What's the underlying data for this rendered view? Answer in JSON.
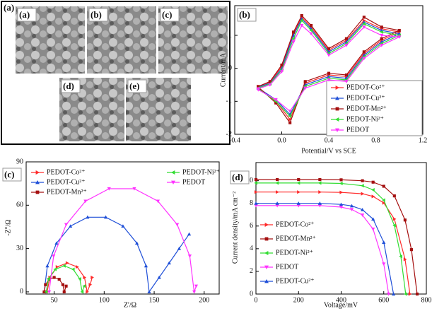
{
  "panel_a": {
    "label": "(a)",
    "images": [
      "(a)",
      "(b)",
      "(c)",
      "(d)",
      "(e)"
    ]
  },
  "chart_data": [
    {
      "type": "line",
      "label": "(b)",
      "x_label": "Potential/V vs SCE",
      "y_label": "Current/mA",
      "xlim": [
        -0.4,
        1.2
      ],
      "ylim": [
        -2,
        1.9
      ],
      "xticks": [
        -0.4,
        {
          "value": 0,
          "label": "0.0"
        },
        0.4,
        0.8,
        1.2
      ],
      "yticks": [
        -2,
        -1,
        0,
        1
      ],
      "x": [
        -0.2,
        -0.1,
        0,
        0.1,
        0.17,
        0.25,
        0.4,
        0.55,
        0.7,
        0.85,
        1.0,
        0.85,
        0.7,
        0.55,
        0.4,
        0.2,
        0.07,
        -0.05,
        -0.2
      ],
      "series": [
        {
          "name": "PEDOT-Co²⁺",
          "color": "#ff2a2a",
          "marker": "triangle-right",
          "values": [
            -0.55,
            -0.42,
            0.05,
            1.05,
            1.55,
            1.25,
            0.55,
            0.85,
            1.45,
            1.2,
            1.1,
            0.85,
            0.45,
            -0.25,
            -0.2,
            -0.45,
            -1.55,
            -1.0,
            -0.58
          ]
        },
        {
          "name": "PEDOT-Cu²⁺",
          "color": "#1f4fd8",
          "marker": "triangle-up",
          "values": [
            -0.57,
            -0.45,
            0.0,
            1.0,
            1.5,
            1.2,
            0.5,
            0.8,
            1.4,
            1.15,
            1.05,
            0.8,
            0.4,
            -0.3,
            -0.25,
            -0.5,
            -1.4,
            -0.95,
            -0.6
          ]
        },
        {
          "name": "PEDOT-Mn²⁺",
          "color": "#a51010",
          "marker": "square",
          "values": [
            -0.55,
            -0.4,
            0.1,
            1.1,
            1.6,
            1.3,
            0.6,
            0.9,
            1.55,
            1.25,
            1.15,
            0.9,
            0.5,
            -0.2,
            -0.15,
            -0.4,
            -1.65,
            -1.05,
            -0.57
          ]
        },
        {
          "name": "PEDOT-Ni²⁺",
          "color": "#33dd33",
          "marker": "triangle-left",
          "values": [
            -0.6,
            -0.47,
            -0.05,
            0.9,
            1.45,
            1.15,
            0.45,
            0.75,
            1.35,
            1.1,
            1.0,
            0.75,
            0.35,
            -0.35,
            -0.3,
            -0.55,
            -1.45,
            -1.0,
            -0.62
          ]
        },
        {
          "name": "PEDOT",
          "color": "#ff33ff",
          "marker": "triangle-down",
          "values": [
            -0.62,
            -0.5,
            -0.1,
            0.8,
            1.3,
            1.05,
            0.4,
            0.7,
            1.25,
            1.0,
            0.95,
            0.7,
            0.3,
            -0.4,
            -0.35,
            -0.6,
            -1.3,
            -0.95,
            -0.65
          ]
        }
      ]
    },
    {
      "type": "line",
      "label": "(c)",
      "x_label": "Z'/Ω",
      "y_label": "-Z''/Ω",
      "xlim": [
        22,
        215
      ],
      "ylim": [
        -1.5,
        90
      ],
      "xticks": [
        50,
        100,
        150,
        200
      ],
      "yticks": [
        0,
        30,
        60,
        90
      ],
      "series": [
        {
          "name": "PEDOT-Co²⁺",
          "color": "#ff2a2a",
          "marker": "triangle-right",
          "x": [
            43,
            45.7,
            53,
            63,
            73,
            80.3,
            83,
            86,
            88
          ],
          "values": [
            0,
            10,
            17.3,
            20,
            17.3,
            10,
            0,
            5,
            10
          ]
        },
        {
          "name": "PEDOT-Cu²⁺",
          "color": "#1f4fd8",
          "marker": "triangle-up",
          "x": [
            40,
            43.2,
            52.3,
            66.3,
            83.4,
            101.6,
            118.8,
            132.7,
            141.8,
            145,
            155,
            165,
            175,
            185
          ],
          "values": [
            0,
            18,
            33.7,
            45.5,
            51.7,
            51.7,
            45.5,
            33.7,
            18,
            0,
            10,
            20,
            30,
            40
          ]
        },
        {
          "name": "PEDOT-Mn²⁺",
          "color": "#a51010",
          "marker": "square",
          "x": [
            40,
            41.3,
            45,
            50,
            55,
            58.7,
            60,
            62
          ],
          "values": [
            0,
            5,
            8.7,
            10,
            8.7,
            5,
            0,
            4
          ]
        },
        {
          "name": "PEDOT-Ni²⁺",
          "color": "#33dd33",
          "marker": "triangle-left",
          "x": [
            42,
            44.4,
            51,
            60,
            69,
            75.6,
            78,
            80
          ],
          "values": [
            0,
            9,
            15.6,
            18,
            15.6,
            9,
            0,
            4
          ]
        },
        {
          "name": "PEDOT",
          "color": "#ff33ff",
          "marker": "triangle-down",
          "x": [
            45,
            49.4,
            62,
            81.3,
            104.9,
            130.1,
            153.8,
            173,
            185.6,
            190,
            192
          ],
          "values": [
            0,
            24.8,
            46.6,
            62.8,
            71.4,
            71.4,
            62.8,
            46.6,
            24.8,
            0,
            4
          ]
        }
      ]
    },
    {
      "type": "line",
      "label": "(d)",
      "x_label": "Voltage/mV",
      "y_label": "Current density/mA cm⁻²",
      "xlim": [
        0,
        800
      ],
      "ylim": [
        0,
        11.6
      ],
      "xticks": [
        0,
        200,
        400,
        600,
        800
      ],
      "yticks": [
        0,
        2,
        4,
        6,
        8,
        10
      ],
      "series": [
        {
          "name": "PEDOT-Co²⁺",
          "color": "#ff2a2a",
          "marker": "triangle-right",
          "x": [
            0,
            100,
            200,
            300,
            400,
            500,
            550,
            600,
            650,
            700,
            723
          ],
          "values": [
            9.0,
            9.0,
            9.0,
            9.0,
            8.97,
            8.85,
            8.61,
            8.04,
            6.62,
            3.06,
            0
          ]
        },
        {
          "name": "PEDOT-Mn²⁺",
          "color": "#a51010",
          "marker": "square",
          "x": [
            0,
            100,
            200,
            300,
            400,
            500,
            550,
            600,
            650,
            700,
            730,
            757
          ],
          "values": [
            10.1,
            10.1,
            10.1,
            10.1,
            10.08,
            10.0,
            9.87,
            9.51,
            8.66,
            6.53,
            3.92,
            0
          ]
        },
        {
          "name": "PEDOT-Ni²⁺",
          "color": "#33dd33",
          "marker": "triangle-left",
          "x": [
            0,
            100,
            200,
            300,
            400,
            500,
            550,
            600,
            650,
            680,
            703
          ],
          "values": [
            9.8,
            9.8,
            9.8,
            9.8,
            9.76,
            9.56,
            9.19,
            8.29,
            6.05,
            3.33,
            0
          ]
        },
        {
          "name": "PEDOT",
          "color": "#ff33ff",
          "marker": "triangle-down",
          "x": [
            0,
            100,
            200,
            300,
            400,
            450,
            500,
            550,
            600,
            623
          ],
          "values": [
            7.8,
            7.8,
            7.8,
            7.8,
            7.67,
            7.46,
            6.97,
            5.73,
            2.65,
            0
          ]
        },
        {
          "name": "PEDOT-Cu²⁺",
          "color": "#1f4fd8",
          "marker": "triangle-up",
          "x": [
            0,
            100,
            200,
            300,
            400,
            450,
            500,
            550,
            600,
            646
          ],
          "values": [
            8.0,
            8.0,
            8.0,
            8.0,
            7.91,
            7.78,
            7.44,
            6.61,
            4.56,
            0
          ]
        }
      ]
    }
  ]
}
